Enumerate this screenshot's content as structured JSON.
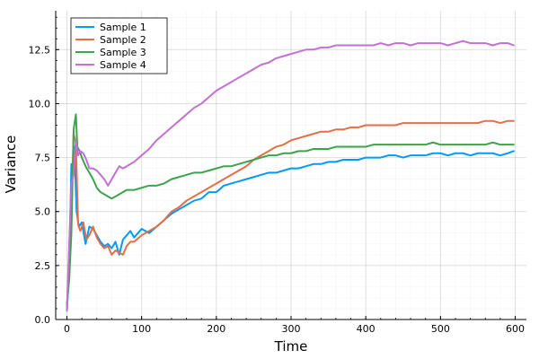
{
  "chart_data": {
    "type": "line",
    "title": "",
    "xlabel": "Time",
    "ylabel": "Variance",
    "xlim": [
      -15,
      615
    ],
    "ylim": [
      0,
      14.3
    ],
    "xticks": [
      0,
      100,
      200,
      300,
      400,
      500,
      600
    ],
    "xtick_labels": [
      "0",
      "100",
      "200",
      "300",
      "400",
      "500",
      "600"
    ],
    "yticks": [
      0,
      2.5,
      5,
      7.5,
      10,
      12.5
    ],
    "ytick_labels": [
      "0.0",
      "2.5",
      "5.0",
      "7.5",
      "10.0",
      "12.5"
    ],
    "grid": true,
    "minor_grid": true,
    "legend_position": "top-left",
    "series": [
      {
        "name": "Sample 1",
        "color": "#009AFA",
        "x": [
          0,
          3,
          6,
          8,
          10,
          13,
          16,
          20,
          25,
          30,
          35,
          40,
          45,
          50,
          55,
          60,
          65,
          70,
          75,
          80,
          85,
          90,
          100,
          110,
          120,
          130,
          140,
          150,
          160,
          170,
          180,
          190,
          200,
          210,
          220,
          230,
          240,
          250,
          260,
          270,
          280,
          290,
          300,
          310,
          320,
          330,
          340,
          350,
          360,
          370,
          380,
          390,
          400,
          410,
          420,
          430,
          440,
          450,
          460,
          470,
          480,
          490,
          500,
          510,
          520,
          530,
          540,
          550,
          560,
          570,
          580,
          590,
          598
        ],
        "y": [
          0.4,
          2.2,
          7.2,
          6.5,
          8.0,
          5.0,
          4.3,
          4.5,
          3.5,
          4.3,
          4.2,
          3.9,
          3.6,
          3.4,
          3.5,
          3.3,
          3.6,
          3.0,
          3.7,
          3.9,
          4.1,
          3.8,
          4.2,
          4.0,
          4.3,
          4.6,
          4.9,
          5.1,
          5.3,
          5.5,
          5.6,
          5.9,
          5.9,
          6.2,
          6.3,
          6.4,
          6.5,
          6.6,
          6.7,
          6.8,
          6.8,
          6.9,
          7.0,
          7.0,
          7.1,
          7.2,
          7.2,
          7.3,
          7.3,
          7.4,
          7.4,
          7.4,
          7.5,
          7.5,
          7.5,
          7.6,
          7.6,
          7.5,
          7.6,
          7.6,
          7.6,
          7.7,
          7.7,
          7.6,
          7.7,
          7.7,
          7.6,
          7.7,
          7.7,
          7.7,
          7.6,
          7.7,
          7.8
        ]
      },
      {
        "name": "Sample 2",
        "color": "#E26F46",
        "x": [
          0,
          3,
          6,
          9,
          12,
          15,
          18,
          22,
          26,
          30,
          35,
          40,
          45,
          50,
          55,
          60,
          65,
          70,
          75,
          80,
          85,
          90,
          100,
          110,
          120,
          130,
          140,
          150,
          160,
          170,
          180,
          190,
          200,
          210,
          220,
          230,
          240,
          250,
          260,
          270,
          280,
          290,
          300,
          310,
          320,
          330,
          340,
          350,
          360,
          370,
          380,
          390,
          400,
          410,
          420,
          430,
          440,
          450,
          460,
          470,
          480,
          490,
          500,
          510,
          520,
          530,
          540,
          550,
          560,
          570,
          580,
          590,
          598
        ],
        "y": [
          0.5,
          3.0,
          4.8,
          8.6,
          8.2,
          4.4,
          4.1,
          4.5,
          3.7,
          3.9,
          4.3,
          3.8,
          3.5,
          3.3,
          3.4,
          3.0,
          3.2,
          3.1,
          3.0,
          3.4,
          3.6,
          3.6,
          3.9,
          4.1,
          4.3,
          4.6,
          5.0,
          5.2,
          5.5,
          5.7,
          5.9,
          6.1,
          6.3,
          6.5,
          6.7,
          6.9,
          7.1,
          7.4,
          7.6,
          7.8,
          8.0,
          8.1,
          8.3,
          8.4,
          8.5,
          8.6,
          8.7,
          8.7,
          8.8,
          8.8,
          8.9,
          8.9,
          9.0,
          9.0,
          9.0,
          9.0,
          9.0,
          9.1,
          9.1,
          9.1,
          9.1,
          9.1,
          9.1,
          9.1,
          9.1,
          9.1,
          9.1,
          9.1,
          9.2,
          9.2,
          9.1,
          9.2,
          9.2
        ]
      },
      {
        "name": "Sample 3",
        "color": "#3DA44D",
        "x": [
          0,
          3,
          6,
          9,
          12,
          14,
          17,
          20,
          25,
          30,
          35,
          40,
          45,
          50,
          55,
          60,
          65,
          70,
          80,
          90,
          100,
          110,
          120,
          130,
          140,
          150,
          160,
          170,
          180,
          190,
          200,
          210,
          220,
          230,
          240,
          250,
          260,
          270,
          280,
          290,
          300,
          310,
          320,
          330,
          340,
          350,
          360,
          370,
          380,
          390,
          400,
          410,
          420,
          430,
          440,
          450,
          460,
          470,
          480,
          490,
          500,
          510,
          520,
          530,
          540,
          550,
          560,
          570,
          580,
          590,
          598
        ],
        "y": [
          0.7,
          1.8,
          4.0,
          8.8,
          9.5,
          8.0,
          7.8,
          7.5,
          7.1,
          6.8,
          6.5,
          6.1,
          5.9,
          5.8,
          5.7,
          5.6,
          5.7,
          5.8,
          6.0,
          6.0,
          6.1,
          6.2,
          6.2,
          6.3,
          6.5,
          6.6,
          6.7,
          6.8,
          6.8,
          6.9,
          7.0,
          7.1,
          7.1,
          7.2,
          7.3,
          7.4,
          7.5,
          7.6,
          7.6,
          7.7,
          7.7,
          7.8,
          7.8,
          7.9,
          7.9,
          7.9,
          8.0,
          8.0,
          8.0,
          8.0,
          8.0,
          8.1,
          8.1,
          8.1,
          8.1,
          8.1,
          8.1,
          8.1,
          8.1,
          8.2,
          8.1,
          8.1,
          8.1,
          8.1,
          8.1,
          8.1,
          8.1,
          8.2,
          8.1,
          8.1,
          8.1
        ]
      },
      {
        "name": "Sample 4",
        "color": "#C271D2",
        "x": [
          0,
          3,
          6,
          9,
          12,
          15,
          18,
          22,
          26,
          30,
          35,
          40,
          45,
          50,
          55,
          60,
          65,
          70,
          75,
          80,
          90,
          100,
          110,
          120,
          130,
          140,
          150,
          160,
          170,
          180,
          190,
          200,
          210,
          220,
          230,
          240,
          250,
          260,
          270,
          280,
          290,
          300,
          310,
          320,
          330,
          340,
          350,
          360,
          370,
          380,
          390,
          400,
          410,
          420,
          430,
          440,
          450,
          460,
          470,
          480,
          490,
          500,
          510,
          520,
          530,
          540,
          550,
          560,
          570,
          580,
          590,
          598
        ],
        "y": [
          0.4,
          3.4,
          6.3,
          6.7,
          8.3,
          7.6,
          7.8,
          7.7,
          7.4,
          7.0,
          7.0,
          6.9,
          6.7,
          6.5,
          6.2,
          6.5,
          6.8,
          7.1,
          7.0,
          7.1,
          7.3,
          7.6,
          7.9,
          8.3,
          8.6,
          8.9,
          9.2,
          9.5,
          9.8,
          10.0,
          10.3,
          10.6,
          10.8,
          11.0,
          11.2,
          11.4,
          11.6,
          11.8,
          11.9,
          12.1,
          12.2,
          12.3,
          12.4,
          12.5,
          12.5,
          12.6,
          12.6,
          12.7,
          12.7,
          12.7,
          12.7,
          12.7,
          12.7,
          12.8,
          12.7,
          12.8,
          12.8,
          12.7,
          12.8,
          12.8,
          12.8,
          12.8,
          12.7,
          12.8,
          12.9,
          12.8,
          12.8,
          12.8,
          12.7,
          12.8,
          12.8,
          12.7
        ]
      }
    ]
  }
}
